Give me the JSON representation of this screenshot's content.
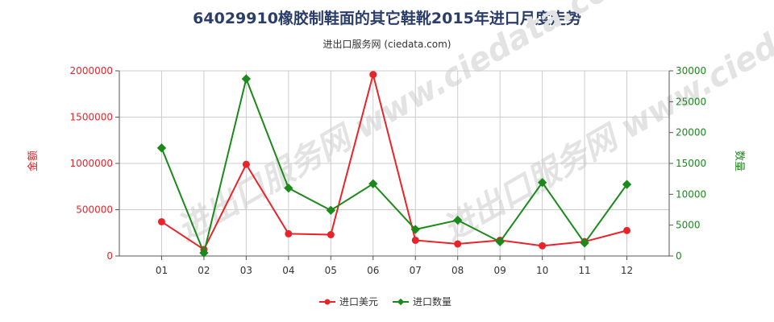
{
  "title": "64029910橡胶制鞋面的其它鞋靴2015年进口月度走势",
  "subtitle": "进出口服务网 (ciedata.com)",
  "watermark": "进出口服务网 www.ciedata.com",
  "colors": {
    "series_usd": "#e8242a",
    "series_qty": "#1a8a1a",
    "grid": "#cccccc",
    "axis": "#555555"
  },
  "chart_data": {
    "type": "line",
    "categories": [
      "01",
      "02",
      "03",
      "04",
      "05",
      "06",
      "07",
      "08",
      "09",
      "10",
      "11",
      "12"
    ],
    "y_left": {
      "label": "金额",
      "ylim": [
        0,
        2000000
      ],
      "ticks": [
        0,
        500000,
        1000000,
        1500000,
        2000000
      ],
      "tick_labels": [
        "0",
        "500000",
        "1000000",
        "1500000",
        "2000000"
      ]
    },
    "y_right": {
      "label": "数量",
      "ylim": [
        0,
        30000
      ],
      "ticks": [
        0,
        5000,
        10000,
        15000,
        20000,
        25000,
        30000
      ],
      "tick_labels": [
        "0",
        "5000",
        "10000",
        "15000",
        "20000",
        "25000",
        "30000"
      ]
    },
    "series": [
      {
        "name": "进口美元",
        "axis": "left",
        "values": [
          370000,
          70000,
          990000,
          240000,
          230000,
          1960000,
          170000,
          130000,
          170000,
          110000,
          155000,
          275000
        ]
      },
      {
        "name": "进口数量",
        "axis": "right",
        "values": [
          17500,
          500,
          28700,
          11000,
          7400,
          11700,
          4300,
          5800,
          2300,
          11900,
          2100,
          11600
        ]
      }
    ],
    "grid": true,
    "legend_position": "bottom"
  }
}
